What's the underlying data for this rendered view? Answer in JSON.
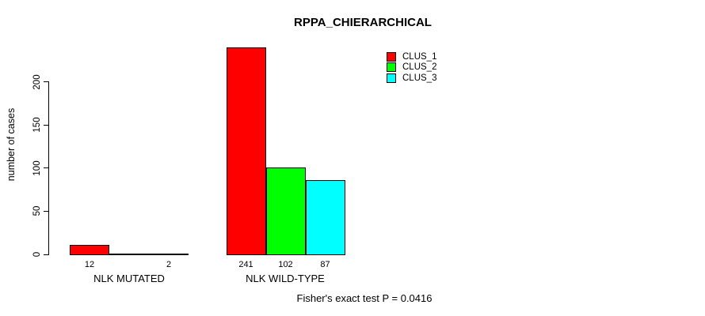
{
  "figure": {
    "title": "RPPA_CHIERARCHICAL",
    "footnote": "Fisher's exact test P = 0.0416"
  },
  "chart_data": {
    "type": "bar",
    "title": "RPPA_CHIERARCHICAL",
    "xlabel": "",
    "ylabel": "number of cases",
    "ylim": [
      0,
      241
    ],
    "yticks": [
      0,
      50,
      100,
      150,
      200
    ],
    "grid": false,
    "legend_position": "top-right",
    "categories": [
      "NLK MUTATED",
      "NLK WILD-TYPE"
    ],
    "series": [
      {
        "name": "CLUS_1",
        "color": "#FF0000",
        "values": [
          12,
          241
        ]
      },
      {
        "name": "CLUS_2",
        "color": "#00FF00",
        "values": [
          0,
          102
        ]
      },
      {
        "name": "CLUS_3",
        "color": "#00FFFF",
        "values": [
          2,
          87
        ]
      }
    ],
    "bar_labels": [
      [
        "12",
        "",
        "2"
      ],
      [
        "241",
        "102",
        "87"
      ]
    ],
    "annotation": "Fisher's exact test P = 0.0416"
  }
}
